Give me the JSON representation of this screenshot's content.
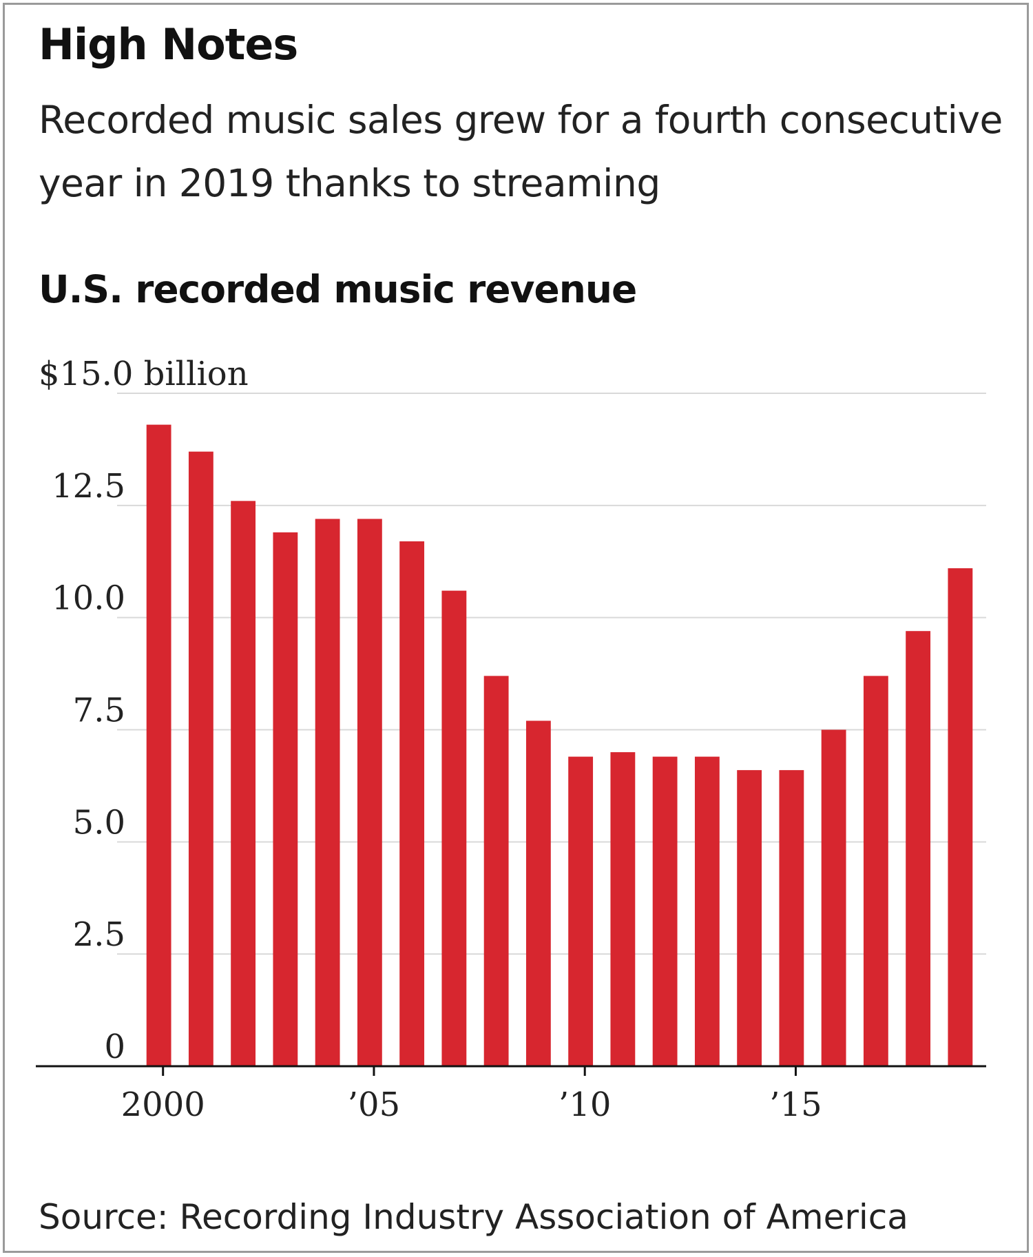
{
  "header": {
    "title": "High Notes",
    "subtitle": "Recorded music sales grew for a fourth consecutive year in 2019 thanks to streaming"
  },
  "chart_data": {
    "type": "bar",
    "title": "U.S. recorded music revenue",
    "xlabel": "",
    "ylabel": "",
    "unit_label": "$15.0 billion",
    "categories": [
      "2000",
      "2001",
      "2002",
      "2003",
      "2004",
      "2005",
      "2006",
      "2007",
      "2008",
      "2009",
      "2010",
      "2011",
      "2012",
      "2013",
      "2014",
      "2015",
      "2016",
      "2017",
      "2018",
      "2019"
    ],
    "series": [
      {
        "values": [
          14.3,
          13.7,
          12.6,
          11.9,
          12.2,
          12.2,
          11.7,
          10.6,
          8.7,
          7.7,
          6.9,
          7.0,
          6.9,
          6.9,
          6.6,
          6.6,
          7.5,
          8.7,
          9.7,
          11.1
        ],
        "color": "#d7262f"
      }
    ],
    "ylim": [
      0,
      15
    ],
    "yticks": [
      0,
      2.5,
      5.0,
      7.5,
      10.0,
      12.5,
      15.0
    ],
    "ytick_labels": [
      "0",
      "2.5",
      "5.0",
      "7.5",
      "10.0",
      "12.5",
      ""
    ],
    "xticks": [
      {
        "category": "2000",
        "label": "2000"
      },
      {
        "category": "2005",
        "label": "’05"
      },
      {
        "category": "2010",
        "label": "’10"
      },
      {
        "category": "2015",
        "label": "’15"
      }
    ],
    "grid": true,
    "legend": "none"
  },
  "source": "Source: Recording Industry Association of America"
}
